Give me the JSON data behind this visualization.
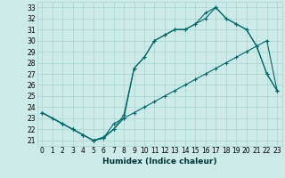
{
  "xlabel": "Humidex (Indice chaleur)",
  "bg_color": "#cceae7",
  "grid_color": "#aad4d0",
  "line_color": "#006868",
  "xlim": [
    -0.5,
    23.5
  ],
  "ylim": [
    20.5,
    33.5
  ],
  "xticks": [
    0,
    1,
    2,
    3,
    4,
    5,
    6,
    7,
    8,
    9,
    10,
    11,
    12,
    13,
    14,
    15,
    16,
    17,
    18,
    19,
    20,
    21,
    22,
    23
  ],
  "yticks": [
    21,
    22,
    23,
    24,
    25,
    26,
    27,
    28,
    29,
    30,
    31,
    32,
    33
  ],
  "line1_x": [
    0,
    1,
    2,
    3,
    4,
    5,
    6,
    7,
    8,
    9,
    10,
    11,
    12,
    13,
    14,
    15,
    16,
    17,
    18,
    19,
    20,
    21,
    22,
    23
  ],
  "line1_y": [
    23.5,
    23.0,
    22.5,
    22.0,
    21.5,
    21.0,
    21.2,
    22.5,
    23.0,
    23.5,
    24.0,
    24.5,
    25.0,
    25.5,
    26.0,
    26.5,
    27.0,
    27.5,
    28.0,
    28.5,
    29.0,
    29.5,
    30.0,
    25.5
  ],
  "line2_x": [
    0,
    2,
    3,
    4,
    5,
    6,
    7,
    8,
    9,
    10,
    11,
    12,
    13,
    14,
    15,
    16,
    17,
    18,
    19,
    20,
    21,
    22,
    23
  ],
  "line2_y": [
    23.5,
    22.5,
    22.0,
    21.5,
    21.0,
    21.2,
    22.0,
    23.3,
    27.5,
    28.5,
    30.0,
    30.5,
    31.0,
    31.0,
    31.5,
    32.0,
    33.0,
    32.0,
    31.5,
    31.0,
    29.5,
    27.0,
    25.5
  ],
  "line3_x": [
    0,
    2,
    3,
    4,
    5,
    6,
    7,
    8,
    9,
    10,
    11,
    12,
    13,
    14,
    15,
    16,
    17,
    18,
    19,
    20,
    21,
    22,
    23
  ],
  "line3_y": [
    23.5,
    22.5,
    22.0,
    21.5,
    21.0,
    21.3,
    22.0,
    23.0,
    27.5,
    28.5,
    30.0,
    30.5,
    31.0,
    31.0,
    31.5,
    32.5,
    33.0,
    32.0,
    31.5,
    31.0,
    29.5,
    27.0,
    25.5
  ],
  "tick_fontsize": 5.5,
  "label_fontsize": 6.5
}
